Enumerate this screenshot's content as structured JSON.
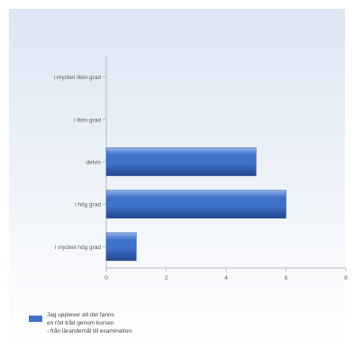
{
  "chart_data": {
    "type": "bar",
    "orientation": "horizontal",
    "categories": [
      "i mycket liten grad",
      "i liten grad",
      "delvis",
      "i hög grad",
      "i mycket hög grad"
    ],
    "series": [
      {
        "name": "Jag upplever att det fanns en röd tråd genom kursen - från lärandemål till examination.",
        "values": [
          0,
          0,
          5,
          6,
          1
        ]
      }
    ],
    "xlim": [
      0,
      8
    ],
    "x_ticks": [
      "0",
      "2",
      "4",
      "6",
      "8"
    ],
    "grid": false,
    "legend_position": "bottom-left",
    "legend_lines": [
      "Jag upplever att det fanns",
      "en röd tråd genom kursen",
      "- från lärandemål till examination."
    ],
    "colors": {
      "bar": "#3f72c9",
      "bar_light": "#8fb2ee",
      "bar_dark": "#22478f",
      "background_top": "#dde6f3",
      "background_bottom": "#ffffff"
    }
  }
}
